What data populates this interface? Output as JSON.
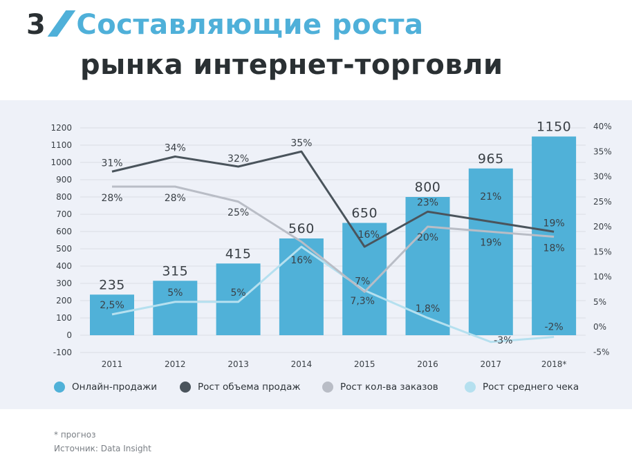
{
  "header": {
    "number": "3",
    "title_line1": "Составляющие роста",
    "title_line2": "рынка интернет-торговли"
  },
  "colors": {
    "accent": "#4fb0d9",
    "bars": "#50b1d8",
    "volume_growth": "#4a545c",
    "orders_growth": "#b9bdc6",
    "check_growth": "#b5e0ef",
    "panel_bg": "#eef1f8",
    "text_dark": "#2a3033"
  },
  "chart_data": {
    "type": "bar+line",
    "categories": [
      "2011",
      "2012",
      "2013",
      "2014",
      "2015",
      "2016",
      "2017",
      "2018*"
    ],
    "left_axis": {
      "ylim": [
        -100,
        1200
      ],
      "ticks": [
        "-100",
        "0",
        "100",
        "200",
        "300",
        "400",
        "500",
        "600",
        "700",
        "800",
        "900",
        "1000",
        "1100",
        "1200"
      ]
    },
    "right_axis": {
      "ylim": [
        -5,
        40
      ],
      "ticks": [
        "-5%",
        "0%",
        "5%",
        "10%",
        "15%",
        "20%",
        "25%",
        "30%",
        "35%",
        "40%"
      ]
    },
    "grid": true,
    "legend_placement": "bottom",
    "series": [
      {
        "name": "Онлайн-продажи",
        "type": "bar",
        "axis": "left",
        "values": [
          235,
          315,
          415,
          560,
          650,
          800,
          965,
          1150
        ],
        "labels": [
          "235",
          "315",
          "415",
          "560",
          "650",
          "800",
          "965",
          "1150"
        ]
      },
      {
        "name": "Рост объема продаж",
        "type": "line",
        "axis": "right",
        "values": [
          31,
          34,
          32,
          35,
          16,
          23,
          21,
          19
        ],
        "labels": [
          "31%",
          "34%",
          "32%",
          "35%",
          "16%",
          "23%",
          "21%",
          "19%"
        ]
      },
      {
        "name": "Рост кол-ва заказов",
        "type": "line",
        "axis": "right",
        "values": [
          28,
          28,
          25,
          17,
          7,
          20,
          19,
          18
        ],
        "labels": [
          "28%",
          "28%",
          "25%",
          null,
          "7%",
          "20%",
          "19%",
          "18%"
        ]
      },
      {
        "name": "Рост среднего чека",
        "type": "line",
        "axis": "right",
        "values": [
          2.5,
          5,
          5,
          16,
          7.3,
          1.8,
          -3,
          -2
        ],
        "labels": [
          "2,5%",
          "5%",
          "5%",
          "16%",
          "7,3%",
          "1,8%",
          "-3%",
          "-2%"
        ]
      }
    ]
  },
  "footer": {
    "note": "* прогноз",
    "source": "Источник: Data Insight"
  }
}
